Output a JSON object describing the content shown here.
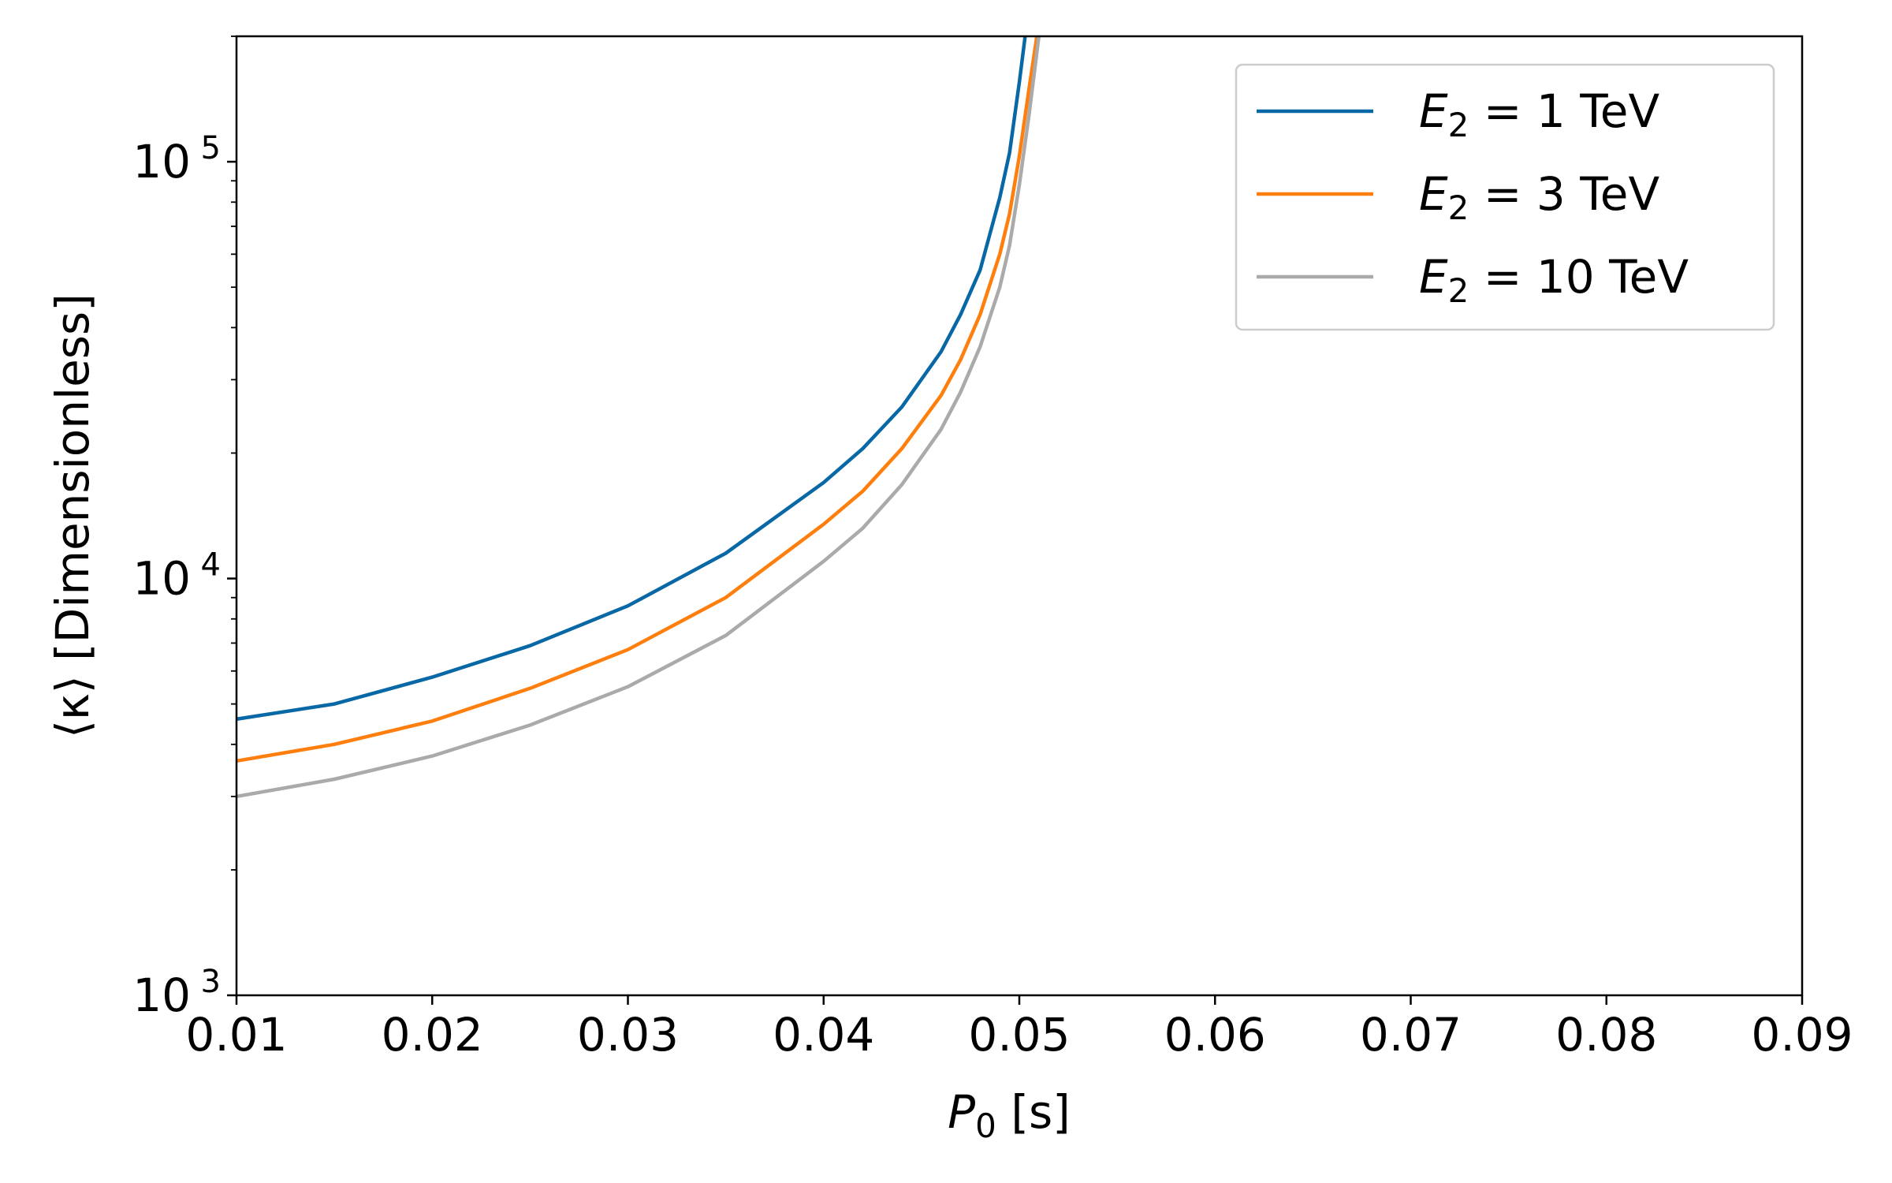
{
  "chart_data": {
    "type": "line",
    "title": "",
    "xlabel": {
      "main": "P",
      "sub": "0",
      "unit": " [s]"
    },
    "ylabel": "⟨κ⟩ [Dimensionless]",
    "xlim": [
      0.01,
      0.09
    ],
    "ylim": [
      1000,
      200000
    ],
    "yscale": "log",
    "grid": false,
    "legend_position": "top-right",
    "x_ticks": [
      0.01,
      0.02,
      0.03,
      0.04,
      0.05,
      0.06,
      0.07,
      0.08,
      0.09
    ],
    "x_tick_labels": [
      "0.01",
      "0.02",
      "0.03",
      "0.04",
      "0.05",
      "0.06",
      "0.07",
      "0.08",
      "0.09"
    ],
    "y_major_ticks": [
      1000,
      10000,
      100000
    ],
    "y_tick_labels": [
      {
        "base": "10",
        "exp": "3"
      },
      {
        "base": "10",
        "exp": "4"
      },
      {
        "base": "10",
        "exp": "5"
      }
    ],
    "series": [
      {
        "name": "E_2 = 1 TeV",
        "legend": {
          "var": "E",
          "sub": "2",
          "text": " = 1 TeV"
        },
        "color": "#0868a6",
        "x": [
          0.01,
          0.015,
          0.02,
          0.025,
          0.03,
          0.035,
          0.04,
          0.042,
          0.044,
          0.046,
          0.047,
          0.048,
          0.049,
          0.0495,
          0.05,
          0.0503
        ],
        "y": [
          4600,
          5000,
          5800,
          6900,
          8600,
          11500,
          17000,
          20500,
          25800,
          35000,
          43000,
          55000,
          82000,
          105000,
          155000,
          200000
        ]
      },
      {
        "name": "E_2 = 3 TeV",
        "legend": {
          "var": "E",
          "sub": "2",
          "text": " = 3 TeV"
        },
        "color": "#ff7f0e",
        "x": [
          0.01,
          0.015,
          0.02,
          0.025,
          0.03,
          0.035,
          0.04,
          0.042,
          0.044,
          0.046,
          0.047,
          0.048,
          0.049,
          0.0495,
          0.05,
          0.0505,
          0.0509
        ],
        "y": [
          3650,
          4000,
          4550,
          5450,
          6750,
          9000,
          13500,
          16200,
          20500,
          27500,
          33500,
          43000,
          60000,
          75000,
          103000,
          150000,
          200000
        ]
      },
      {
        "name": "E_2 = 10 TeV",
        "legend": {
          "var": "E",
          "sub": "2",
          "text": " = 10 TeV"
        },
        "color": "#aaaaaa",
        "x": [
          0.01,
          0.015,
          0.02,
          0.025,
          0.03,
          0.035,
          0.04,
          0.042,
          0.044,
          0.046,
          0.047,
          0.048,
          0.049,
          0.0495,
          0.05,
          0.0505,
          0.051
        ],
        "y": [
          3000,
          3300,
          3750,
          4450,
          5500,
          7300,
          11000,
          13200,
          16800,
          22800,
          28000,
          36000,
          50000,
          63000,
          88000,
          130000,
          200000
        ]
      }
    ]
  }
}
